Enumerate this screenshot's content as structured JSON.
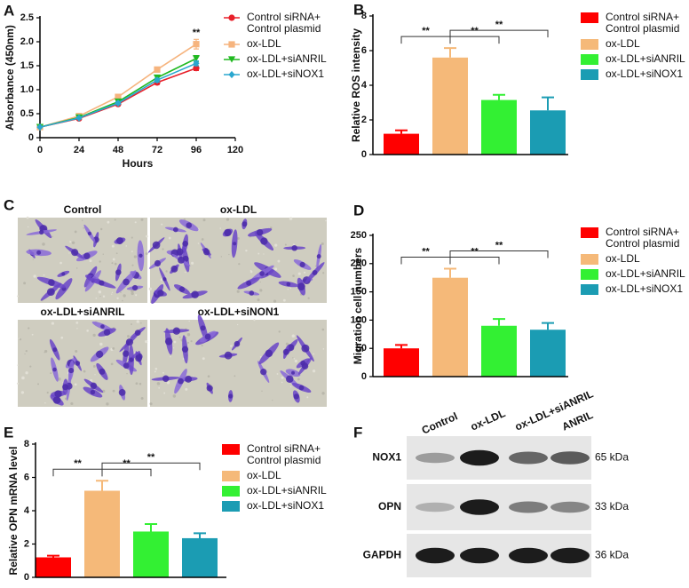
{
  "chart_data": [
    {
      "panel": "A",
      "type": "line",
      "x_label": "Hours",
      "y_label": "Absorbance (450nm)",
      "x": [
        0,
        24,
        48,
        72,
        96
      ],
      "xlim": [
        0,
        120
      ],
      "xticks": [
        0,
        24,
        48,
        72,
        96,
        120
      ],
      "ylim": [
        0,
        2.5
      ],
      "yticks": [
        0,
        0.5,
        {
          "value": 1,
          "label": "1.0"
        },
        1.5,
        {
          "value": 2,
          "label": "2.0"
        },
        2.5
      ],
      "series": [
        {
          "name": "Control siRNA+\nControl plasmid",
          "color": "#e8202a",
          "marker": "circle",
          "values": [
            0.22,
            0.4,
            0.7,
            1.15,
            1.45
          ],
          "errors": [
            0.01,
            0.02,
            0.03,
            0.04,
            0.05
          ]
        },
        {
          "name": "ox-LDL",
          "color": "#f6b47e",
          "marker": "square",
          "values": [
            0.22,
            0.45,
            0.85,
            1.42,
            1.95
          ],
          "errors": [
            0.01,
            0.02,
            0.04,
            0.04,
            0.1
          ]
        },
        {
          "name": "ox-LDL+siANRIL",
          "color": "#21b921",
          "marker": "triangle-down",
          "values": [
            0.22,
            0.42,
            0.75,
            1.25,
            1.65
          ],
          "errors": [
            0.01,
            0.02,
            0.03,
            0.04,
            0.06
          ]
        },
        {
          "name": "ox-LDL+siNOX1",
          "color": "#2aa7cf",
          "marker": "diamond",
          "values": [
            0.22,
            0.41,
            0.72,
            1.2,
            1.55
          ],
          "errors": [
            0.01,
            0.02,
            0.03,
            0.04,
            0.05
          ]
        }
      ],
      "annotations": [
        {
          "x": 96,
          "text": "**"
        }
      ]
    },
    {
      "panel": "B",
      "type": "bar",
      "y_label": "Relative ROS intensity",
      "categories": [
        "Control siRNA+\nControl plasmid",
        "ox-LDL",
        "ox-LDL+siANRIL",
        "ox-LDL+siNOX1"
      ],
      "colors": [
        "#ff0000",
        "#f5b979",
        "#33f033",
        "#1b9cb3"
      ],
      "values": [
        1.2,
        5.6,
        3.15,
        2.55
      ],
      "errors": [
        0.2,
        0.55,
        0.3,
        0.75
      ],
      "ylim": [
        0,
        8
      ],
      "yticks": [
        0,
        2,
        4,
        6,
        8
      ],
      "comparisons": [
        {
          "pair": [
            0,
            1
          ],
          "label": "**"
        },
        {
          "pair": [
            1,
            2
          ],
          "label": "**"
        },
        {
          "pair": [
            1,
            3
          ],
          "label": "**"
        }
      ]
    },
    {
      "panel": "D",
      "type": "bar",
      "y_label": "Migration cell numbers",
      "categories": [
        "Control siRNA+\nControl plasmid",
        "ox-LDL",
        "ox-LDL+siANRIL",
        "ox-LDL+siNOX1"
      ],
      "colors": [
        "#ff0000",
        "#f5b979",
        "#33f033",
        "#1b9cb3"
      ],
      "values": [
        50,
        175,
        90,
        83
      ],
      "errors": [
        6,
        16,
        12,
        12
      ],
      "ylim": [
        0,
        250
      ],
      "yticks": [
        0,
        50,
        100,
        150,
        200,
        250
      ],
      "comparisons": [
        {
          "pair": [
            0,
            1
          ],
          "label": "**"
        },
        {
          "pair": [
            1,
            2
          ],
          "label": "**"
        },
        {
          "pair": [
            1,
            3
          ],
          "label": "**"
        }
      ]
    },
    {
      "panel": "E",
      "type": "bar",
      "y_label": "Relative OPN mRNA level",
      "categories": [
        "Control siRNA+\nControl plasmid",
        "ox-LDL",
        "ox-LDL+siANRIL",
        "ox-LDL+siNOX1"
      ],
      "colors": [
        "#ff0000",
        "#f5b979",
        "#33f033",
        "#1b9cb3"
      ],
      "values": [
        1.2,
        5.2,
        2.75,
        2.35
      ],
      "errors": [
        0.1,
        0.6,
        0.45,
        0.3
      ],
      "ylim": [
        0,
        8
      ],
      "yticks": [
        0,
        2,
        4,
        6,
        8
      ],
      "comparisons": [
        {
          "pair": [
            0,
            1
          ],
          "label": "**"
        },
        {
          "pair": [
            1,
            2
          ],
          "label": "**"
        },
        {
          "pair": [
            1,
            3
          ],
          "label": "**"
        }
      ]
    }
  ],
  "image_panel": {
    "panel": "C",
    "labels": [
      "Control",
      "ox-LDL",
      "ox-LDL+siANRIL",
      "ox-LDL+siNON1"
    ]
  },
  "blot_panel": {
    "panel": "F",
    "lanes": [
      "Control",
      "ox-LDL",
      "ox-LDL+siANRIL",
      "ANRIL"
    ],
    "rows": [
      {
        "name": "NOX1",
        "size": "65 kDa"
      },
      {
        "name": "OPN",
        "size": "33 kDa"
      },
      {
        "name": "GAPDH",
        "size": "36 kDa"
      }
    ]
  }
}
